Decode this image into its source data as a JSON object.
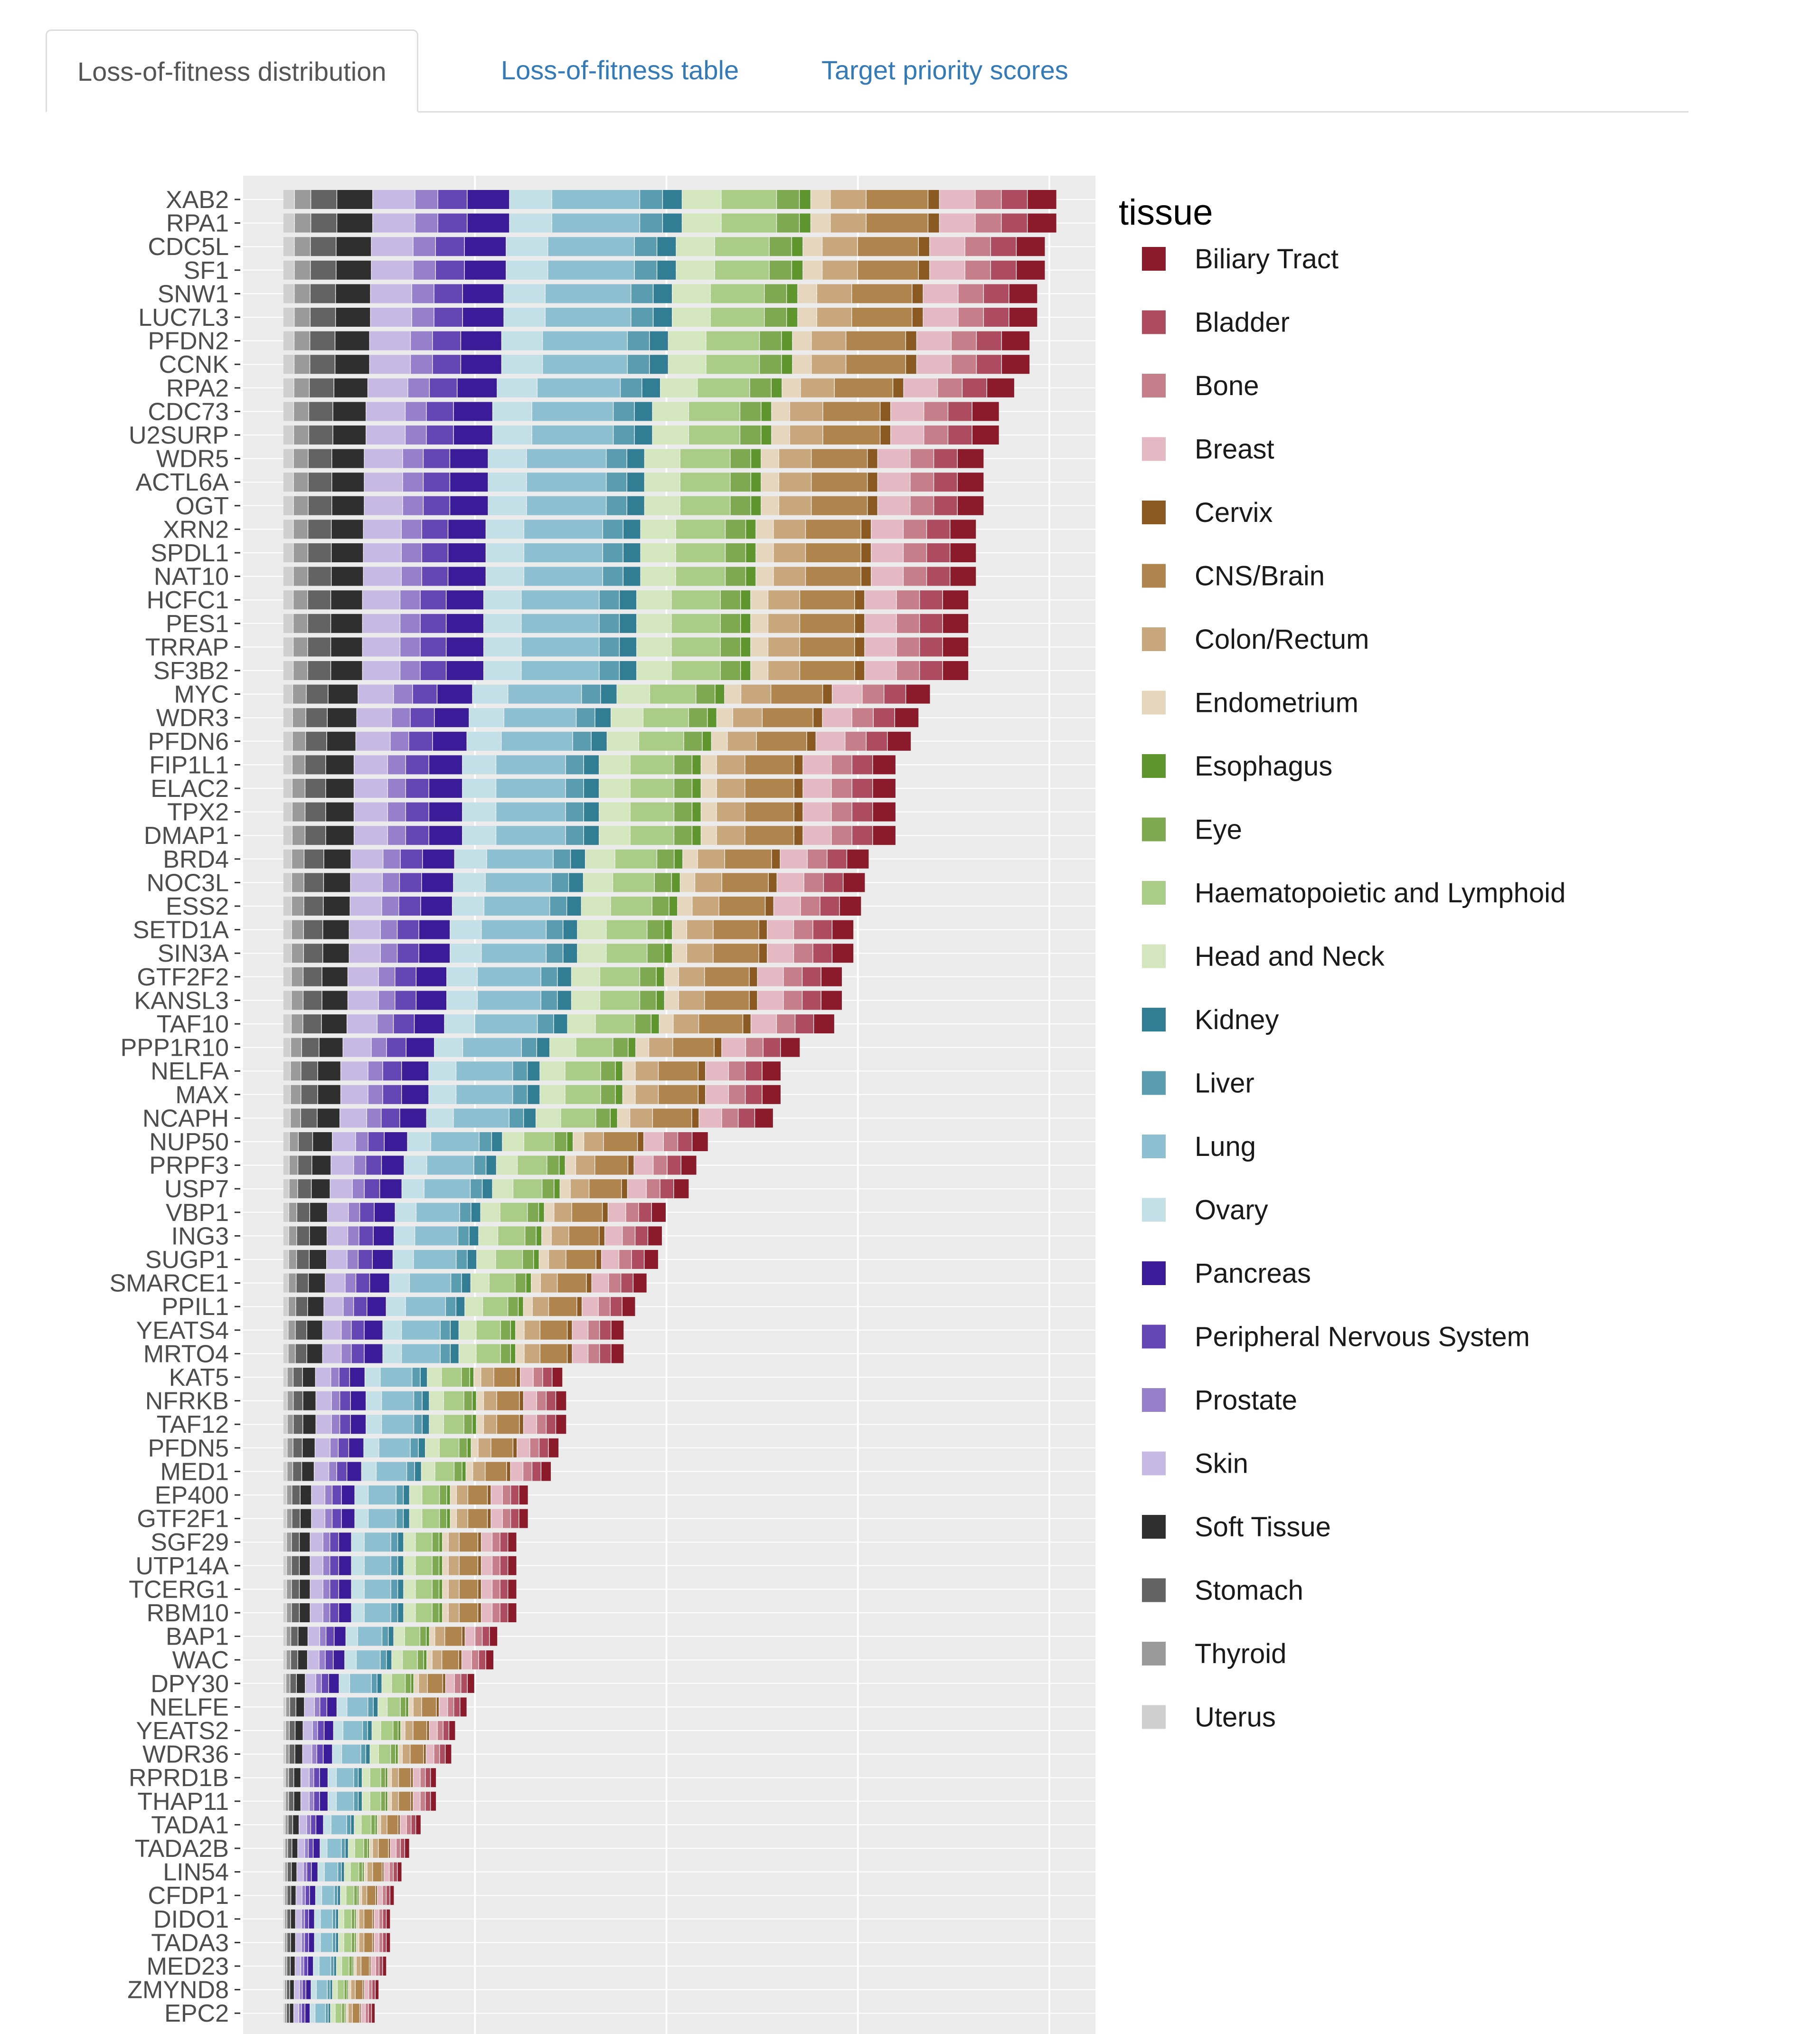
{
  "tabs": [
    {
      "label": "Loss-of-fitness distribution",
      "active": true
    },
    {
      "label": "Loss-of-fitness table",
      "active": false
    },
    {
      "label": "Target priority scores",
      "active": false
    }
  ],
  "chart_data": {
    "type": "bar",
    "orientation": "horizontal",
    "stacked": true,
    "legend_title": "tissue",
    "legend_placement": "right",
    "grid": true,
    "xlim": [
      0,
      21
    ],
    "x_gridlines": [
      5,
      10,
      15,
      20
    ],
    "tissues": [
      {
        "name": "Biliary Tract",
        "color": "#8b1a2b"
      },
      {
        "name": "Bladder",
        "color": "#ad4b5f"
      },
      {
        "name": "Bone",
        "color": "#c77e8b"
      },
      {
        "name": "Breast",
        "color": "#e4b9c3"
      },
      {
        "name": "Cervix",
        "color": "#8a5a22"
      },
      {
        "name": "CNS/Brain",
        "color": "#b0844d"
      },
      {
        "name": "Colon/Rectum",
        "color": "#c9a77c"
      },
      {
        "name": "Endometrium",
        "color": "#e6d6be"
      },
      {
        "name": "Esophagus",
        "color": "#5e952d"
      },
      {
        "name": "Eye",
        "color": "#7ea950"
      },
      {
        "name": "Haematopoietic and Lymphoid",
        "color": "#a9cc86"
      },
      {
        "name": "Head and Neck",
        "color": "#d4e6be"
      },
      {
        "name": "Kidney",
        "color": "#317d93"
      },
      {
        "name": "Liver",
        "color": "#5a9db1"
      },
      {
        "name": "Lung",
        "color": "#8cc0d0"
      },
      {
        "name": "Ovary",
        "color": "#c2e0e6"
      },
      {
        "name": "Pancreas",
        "color": "#3a1c98"
      },
      {
        "name": "Peripheral Nervous System",
        "color": "#6447b4"
      },
      {
        "name": "Prostate",
        "color": "#9680cc"
      },
      {
        "name": "Skin",
        "color": "#c6b9e4"
      },
      {
        "name": "Soft Tissue",
        "color": "#2f2f2f"
      },
      {
        "name": "Stomach",
        "color": "#636363"
      },
      {
        "name": "Thyroid",
        "color": "#9a9a9a"
      },
      {
        "name": "Uterus",
        "color": "#cfcfcf"
      }
    ],
    "stack_order": [
      "Uterus",
      "Thyroid",
      "Stomach",
      "Soft Tissue",
      "Skin",
      "Prostate",
      "Peripheral Nervous System",
      "Pancreas",
      "Ovary",
      "Lung",
      "Liver",
      "Kidney",
      "Head and Neck",
      "Haematopoietic and Lymphoid",
      "Eye",
      "Esophagus",
      "Endometrium",
      "Colon/Rectum",
      "CNS/Brain",
      "Cervix",
      "Breast",
      "Bone",
      "Bladder",
      "Biliary Tract"
    ],
    "categories": [
      "XAB2",
      "RPA1",
      "CDC5L",
      "SF1",
      "SNW1",
      "LUC7L3",
      "PFDN2",
      "CCNK",
      "RPA2",
      "CDC73",
      "U2SURP",
      "WDR5",
      "ACTL6A",
      "OGT",
      "XRN2",
      "SPDL1",
      "NAT10",
      "HCFC1",
      "PES1",
      "TRRAP",
      "SF3B2",
      "MYC",
      "WDR3",
      "PFDN6",
      "FIP1L1",
      "ELAC2",
      "TPX2",
      "DMAP1",
      "BRD4",
      "NOC3L",
      "ESS2",
      "SETD1A",
      "SIN3A",
      "GTF2F2",
      "KANSL3",
      "TAF10",
      "PPP1R10",
      "NELFA",
      "MAX",
      "NCAPH",
      "NUP50",
      "PRPF3",
      "USP7",
      "VBP1",
      "ING3",
      "SUGP1",
      "SMARCE1",
      "PPIL1",
      "YEATS4",
      "MRTO4",
      "KAT5",
      "NFRKB",
      "TAF12",
      "PFDN5",
      "MED1",
      "EP400",
      "GTF2F1",
      "SGF29",
      "UTP14A",
      "TCERG1",
      "RBM10",
      "BAP1",
      "WAC",
      "DPY30",
      "NELFE",
      "YEATS2",
      "WDR36",
      "RPRD1B",
      "THAP11",
      "TADA1",
      "TADA2B",
      "LIN54",
      "CFDP1",
      "DIDO1",
      "TADA3",
      "MED23",
      "ZMYND8",
      "EPC2"
    ],
    "totals": [
      20.2,
      20.2,
      19.9,
      19.9,
      19.7,
      19.7,
      19.5,
      19.5,
      19.1,
      18.7,
      18.7,
      18.3,
      18.3,
      18.3,
      18.1,
      18.1,
      18.1,
      17.9,
      17.9,
      17.9,
      17.9,
      16.9,
      16.6,
      16.4,
      16.0,
      16.0,
      16.0,
      16.0,
      15.3,
      15.2,
      15.1,
      14.9,
      14.9,
      14.6,
      14.6,
      14.4,
      13.5,
      13.0,
      13.0,
      12.8,
      11.1,
      10.8,
      10.6,
      10.0,
      9.9,
      9.8,
      9.5,
      9.2,
      8.9,
      8.9,
      7.3,
      7.4,
      7.4,
      7.2,
      7.0,
      6.4,
      6.4,
      6.1,
      6.1,
      6.1,
      6.1,
      5.6,
      5.5,
      5.0,
      4.8,
      4.5,
      4.4,
      4.0,
      4.0,
      3.6,
      3.3,
      3.1,
      2.9,
      2.8,
      2.8,
      2.7,
      2.5,
      2.4
    ]
  }
}
